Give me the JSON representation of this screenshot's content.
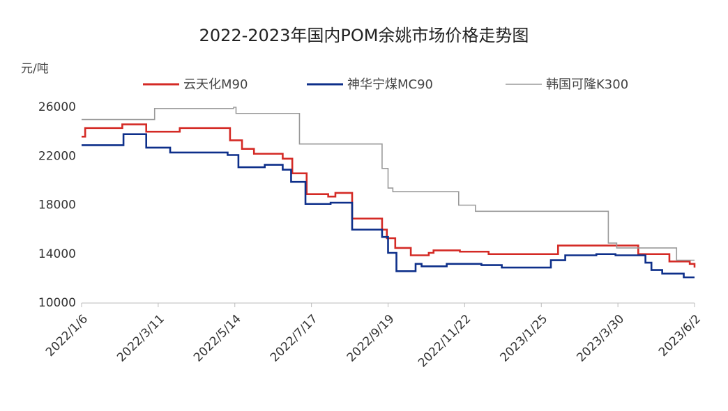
{
  "chart_data": {
    "type": "line",
    "drawstyle": "steps-post",
    "title": "2022-2023年国内POM余姚市场价格走势图",
    "y_label": "元/吨",
    "xlim": [
      "2022/1/6",
      "2023/6/2"
    ],
    "xticks": [
      "2022/1/6",
      "2022/3/11",
      "2022/5/14",
      "2022/7/17",
      "2022/9/19",
      "2022/11/22",
      "2023/1/25",
      "2023/3/30",
      "2023/6/2"
    ],
    "ylim": [
      10000,
      26000
    ],
    "yticks": [
      10000,
      14000,
      18000,
      22000,
      26000
    ],
    "grid": false,
    "series": [
      {
        "name": "云天化M90",
        "color": "#d42a25",
        "x": [
          "2022/1/6",
          "2022/1/9",
          "2022/2/9",
          "2022/3/1",
          "2022/3/29",
          "2022/5/10",
          "2022/5/20",
          "2022/5/30",
          "2022/6/23",
          "2022/7/1",
          "2022/7/13",
          "2022/7/31",
          "2022/8/6",
          "2022/8/20",
          "2022/9/14",
          "2022/9/18",
          "2022/9/25",
          "2022/10/8",
          "2022/10/23",
          "2022/10/27",
          "2022/11/18",
          "2022/12/12",
          "2023/2/8",
          "2023/4/16",
          "2023/5/12",
          "2023/5/29",
          "2023/6/2"
        ],
        "values": [
          23600,
          24300,
          24600,
          24000,
          24300,
          23300,
          22600,
          22200,
          21800,
          20600,
          18900,
          18700,
          19000,
          16900,
          16000,
          15300,
          14500,
          13900,
          14100,
          14300,
          14200,
          14000,
          14700,
          14000,
          13400,
          13200,
          12900
        ]
      },
      {
        "name": "神华宁煤MC90",
        "color": "#0d2f8a",
        "x": [
          "2022/1/6",
          "2022/2/10",
          "2022/3/1",
          "2022/3/21",
          "2022/5/8",
          "2022/5/17",
          "2022/6/8",
          "2022/6/23",
          "2022/6/30",
          "2022/7/12",
          "2022/8/2",
          "2022/8/20",
          "2022/9/14",
          "2022/9/19",
          "2022/9/26",
          "2022/10/12",
          "2022/10/17",
          "2022/11/7",
          "2022/12/6",
          "2022/12/23",
          "2023/2/2",
          "2023/2/14",
          "2023/3/12",
          "2023/3/28",
          "2023/4/22",
          "2023/4/27",
          "2023/5/6",
          "2023/5/24",
          "2023/6/2"
        ],
        "values": [
          22900,
          23800,
          22700,
          22300,
          22100,
          21100,
          21300,
          20900,
          19900,
          18100,
          18200,
          16000,
          15400,
          14100,
          12600,
          13200,
          13000,
          13200,
          13100,
          12900,
          13500,
          13900,
          14000,
          13900,
          13300,
          12700,
          12400,
          12100,
          12100
        ]
      },
      {
        "name": "韩国可隆K300",
        "color": "#9a9a9a",
        "x": [
          "2022/1/6",
          "2022/3/8",
          "2022/5/13",
          "2022/5/15",
          "2022/7/7",
          "2022/9/14",
          "2022/9/19",
          "2022/9/23",
          "2022/11/17",
          "2022/12/1",
          "2023/3/22",
          "2023/3/29",
          "2023/5/18",
          "2023/6/2"
        ],
        "values": [
          25000,
          25900,
          26000,
          25500,
          23000,
          21000,
          19400,
          19100,
          18000,
          17500,
          14900,
          14500,
          13500,
          13500
        ]
      }
    ]
  }
}
